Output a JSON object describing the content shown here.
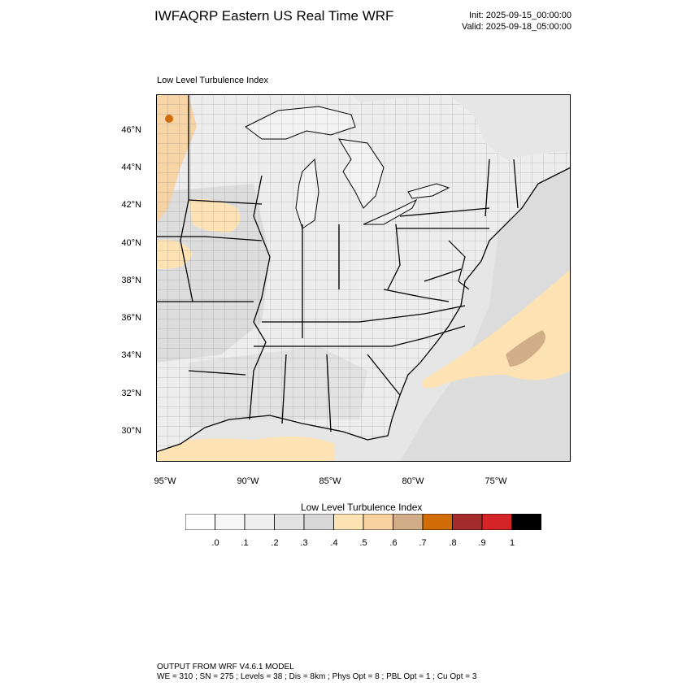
{
  "header": {
    "title": "IWFAQRP Eastern US Real Time WRF",
    "init": "Init: 2025-09-15_00:00:00",
    "valid": "Valid: 2025-09-18_05:00:00"
  },
  "map": {
    "subtitle": "Low Level Turbulence Index",
    "lat_labels": [
      "46°N",
      "44°N",
      "42°N",
      "40°N",
      "38°N",
      "36°N",
      "34°N",
      "32°N",
      "30°N"
    ],
    "lon_labels": [
      "95°W",
      "90°W",
      "85°W",
      "80°W",
      "75°W"
    ]
  },
  "colorbar": {
    "title": "Low Level Turbulence Index",
    "labels": [
      ".0",
      ".1",
      ".2",
      ".3",
      ".4",
      ".5",
      ".6",
      ".7",
      ".8",
      ".9",
      "1"
    ],
    "colors": [
      "#ffffff",
      "#f7f7f7",
      "#efefef",
      "#e2e2e2",
      "#d7d7d7",
      "#fde3b3",
      "#f7d19e",
      "#d2ae88",
      "#d26c06",
      "#a52c2c",
      "#d42428",
      "#000000"
    ]
  },
  "footer": {
    "line1": "OUTPUT FROM WRF V4.6.1 MODEL",
    "line2": "WE = 310 ; SN = 275 ; Levels = 38 ; Dis = 8km ; Phys Opt = 8 ; PBL Opt = 1 ; Cu Opt = 3"
  }
}
